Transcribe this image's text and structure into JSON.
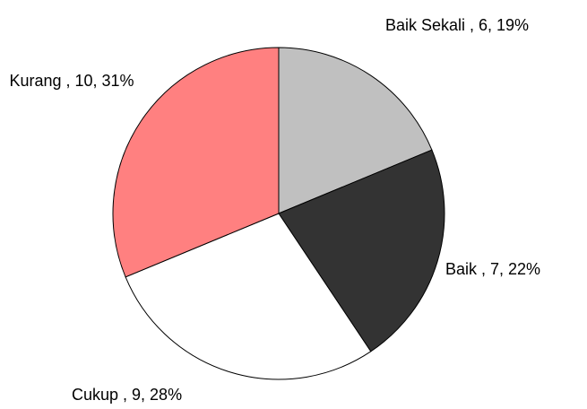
{
  "chart_data": {
    "type": "pie",
    "categories": [
      "Baik Sekali",
      "Baik",
      "Cukup",
      "Kurang"
    ],
    "values": [
      6,
      7,
      9,
      10
    ],
    "value_labels": [
      "Baik Sekali , 6, 19%",
      "Baik , 7, 22%",
      "Cukup , 9, 28%",
      "Kurang , 10, 31%"
    ],
    "colors": [
      "#c0c0c0",
      "#333333",
      "#ffffff",
      "#ff8080"
    ]
  }
}
